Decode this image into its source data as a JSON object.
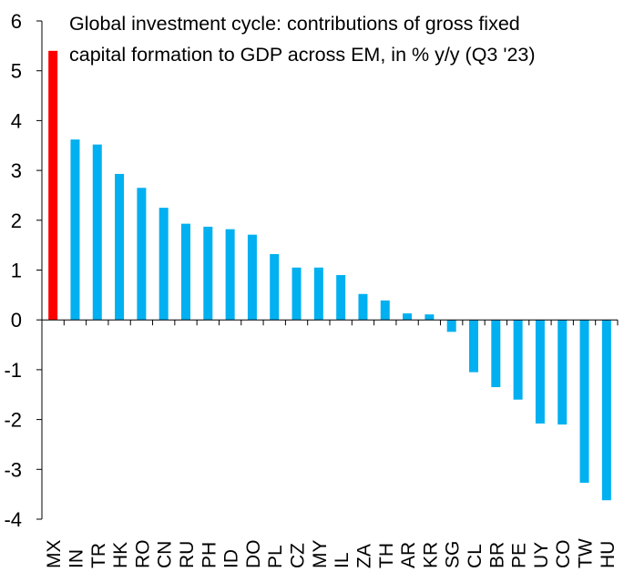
{
  "chart_data": {
    "type": "bar",
    "title": "Global investment cycle: contributions of gross fixed capital formation to GDP across EM, in % y/y (Q3 '23)",
    "title_lines": [
      "Global investment cycle: contributions of gross fixed",
      "capital formation to GDP across EM, in % y/y (Q3 '23)"
    ],
    "xlabel": "",
    "ylabel": "",
    "ylim": [
      -4,
      6
    ],
    "yticks": [
      "6",
      "5",
      "4",
      "3",
      "2",
      "1",
      "0",
      "-1",
      "-2",
      "-3",
      "-4"
    ],
    "grid": false,
    "legend": "none",
    "categories": [
      "MX",
      "IN",
      "TR",
      "HK",
      "RO",
      "CN",
      "RU",
      "PH",
      "ID",
      "DO",
      "PL",
      "CZ",
      "MY",
      "IL",
      "ZA",
      "TH",
      "AR",
      "KR",
      "SG",
      "CL",
      "BR",
      "PE",
      "UY",
      "CO",
      "TW",
      "HU"
    ],
    "values": [
      5.4,
      3.62,
      3.52,
      2.93,
      2.65,
      2.25,
      1.93,
      1.87,
      1.82,
      1.71,
      1.32,
      1.05,
      1.05,
      0.9,
      0.52,
      0.39,
      0.13,
      0.11,
      -0.24,
      -1.05,
      -1.35,
      -1.6,
      -2.08,
      -2.1,
      -3.27,
      -3.62
    ],
    "colors": {
      "highlight": "#ff0000",
      "default": "#00b0f0",
      "axis": "#000000"
    },
    "highlight_category": "MX"
  }
}
